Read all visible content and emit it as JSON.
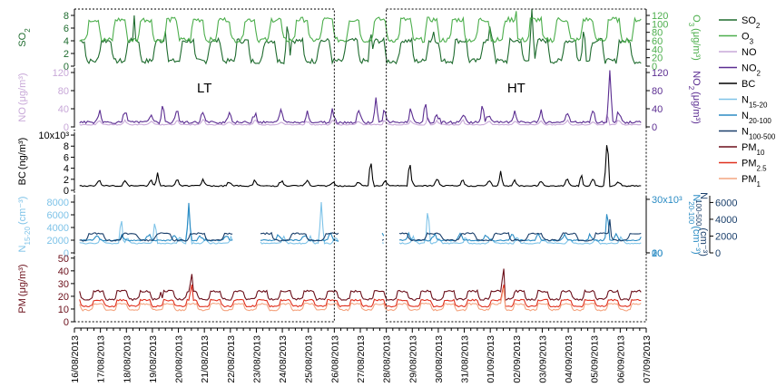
{
  "chart_data": {
    "type": "line",
    "x_labels": [
      "16/08/2013",
      "17/08/2013",
      "18/08/2013",
      "19/08/2013",
      "20/08/2013",
      "21/08/2013",
      "22/08/2013",
      "23/08/2013",
      "24/08/2013",
      "25/08/2013",
      "26/08/2013",
      "27/08/2013",
      "28/08/2013",
      "29/08/2013",
      "30/08/2013",
      "31/08/2013",
      "01/09/2013",
      "02/09/2013",
      "03/09/2013",
      "04/09/2013",
      "05/09/2013",
      "06/09/2013",
      "07/09/2013"
    ],
    "annotations": [
      {
        "text": "LT",
        "x_start": 0,
        "x_end": 10,
        "panel_start": 0,
        "panel_end": 4
      },
      {
        "text": "HT",
        "x_start": 12,
        "x_end": 22,
        "panel_start": 0,
        "panel_end": 4
      }
    ],
    "panels": [
      {
        "id": "so2_o3",
        "left_axis": {
          "label": "SO",
          "label_sub": "2",
          "ticks": [
            "0",
            "2",
            "4",
            "6",
            "8"
          ],
          "ylim": [
            0,
            9
          ],
          "color": "#1e6b2e"
        },
        "right_axis": {
          "label": "O",
          "label_sub": "3",
          "unit": "(μg/m³)",
          "ticks": [
            "0",
            "20",
            "40",
            "60",
            "80",
            "100",
            "120"
          ],
          "ylim": [
            0,
            135
          ],
          "color": "#4cae4c"
        },
        "series": [
          {
            "name": "SO2",
            "color": "#1e6b2e",
            "axis": "left",
            "mode": "wave",
            "base": 2,
            "amp": 2,
            "period": 1.05,
            "phase": 0.1,
            "spikes": [
              [
                2.3,
                8
              ],
              [
                3.5,
                5.5
              ],
              [
                8.2,
                7.5
              ],
              [
                11.4,
                6
              ],
              [
                13.8,
                6.5
              ],
              [
                16.0,
                7.5
              ],
              [
                17.6,
                9
              ],
              [
                19.6,
                6.5
              ]
            ]
          },
          {
            "name": "O3",
            "color": "#4cae4c",
            "axis": "right",
            "mode": "wave",
            "base": 80,
            "amp": 30,
            "period": 1.0,
            "phase": 0.5,
            "spikes": [
              [
                10.8,
                25
              ],
              [
                17.0,
                130
              ],
              [
                19.0,
                125
              ]
            ]
          }
        ]
      },
      {
        "id": "no_no2",
        "left_axis": {
          "label": "NO",
          "label_sub": "",
          "unit": "(μg/m³)",
          "ticks": [
            "0",
            "40",
            "80",
            "120"
          ],
          "ylim": [
            0,
            130
          ],
          "color": "#c8a8d8"
        },
        "right_axis": {
          "label": "NO",
          "label_sub": "2",
          "unit": "(μg/m³)",
          "ticks": [
            "0",
            "40",
            "80",
            "120"
          ],
          "ylim": [
            0,
            130
          ],
          "color": "#5b2d91"
        },
        "series": [
          {
            "name": "NO",
            "color": "#c8a8d8",
            "axis": "left",
            "mode": "spiky",
            "base": 5,
            "amp": 8,
            "period": 1.0,
            "phase": 0.3,
            "spikes": [
              [
                20.5,
                30
              ],
              [
                13.6,
                25
              ]
            ]
          },
          {
            "name": "NO2",
            "color": "#5b2d91",
            "axis": "right",
            "mode": "spiky",
            "base": 10,
            "amp": 22,
            "period": 1.0,
            "phase": 0.3,
            "spikes": [
              [
                3.4,
                55
              ],
              [
                13.5,
                60
              ],
              [
                15.7,
                55
              ],
              [
                20.6,
                125
              ],
              [
                11.6,
                65
              ]
            ]
          }
        ]
      },
      {
        "id": "bc",
        "left_axis": {
          "label": "BC",
          "label_sub": "",
          "unit": "(ng/m³)",
          "ticks": [
            "0",
            "2",
            "4",
            "6",
            "8",
            "10x10³"
          ],
          "ylim": [
            0,
            10.5
          ],
          "color": "#000000"
        },
        "right_axis": null,
        "series": [
          {
            "name": "BC",
            "color": "#000000",
            "axis": "left",
            "mode": "spiky",
            "base": 0.8,
            "amp": 0.9,
            "period": 1.0,
            "phase": 0.3,
            "spikes": [
              [
                20.5,
                9.8
              ],
              [
                11.4,
                5.8
              ],
              [
                12.9,
                5.5
              ],
              [
                3.2,
                3.2
              ],
              [
                16.4,
                3.5
              ],
              [
                19.5,
                3.2
              ]
            ]
          }
        ]
      },
      {
        "id": "particles",
        "left_axis": {
          "label": "N",
          "label_sub": "15-20",
          "unit": "(cm⁻³)",
          "ticks": [
            "0",
            "2000",
            "4000",
            "6000",
            "8000"
          ],
          "ylim": [
            0,
            9000
          ],
          "color": "#7ec3e8"
        },
        "right_axis": {
          "label": "N",
          "label_sub": "20-100",
          "unit": "(cm⁻³)",
          "ticks": [
            "0",
            "10",
            "20",
            "30x10³"
          ],
          "ylim": [
            0,
            32000
          ],
          "color": "#2b8cc4"
        },
        "right_axis2": {
          "label": "N",
          "label_sub": "100-500",
          "unit": "(cm⁻³)",
          "ticks": [
            "0",
            "2000",
            "4000",
            "6000"
          ],
          "ylim": [
            0,
            6800
          ],
          "color": "#1a3f6b"
        },
        "gaps": [
          [
            6.1,
            7.1
          ],
          [
            10.2,
            11.8
          ],
          [
            11.95,
            12.5
          ]
        ],
        "series": [
          {
            "name": "N15-20",
            "color": "#7ec3e8",
            "axis": "left",
            "mode": "spiky",
            "base": 1500,
            "amp": 800,
            "period": 1.0,
            "phase": 0.2,
            "spikes": [
              [
                1.8,
                6000
              ],
              [
                3.1,
                5500
              ],
              [
                4.4,
                7200
              ],
              [
                9.5,
                8000
              ],
              [
                13.6,
                7500
              ]
            ]
          },
          {
            "name": "N20-100",
            "color": "#2b8cc4",
            "axis": "right",
            "mode": "spiky",
            "base": 7000,
            "amp": 3000,
            "period": 1.0,
            "phase": 0.4,
            "spikes": [
              [
                4.4,
                28000
              ],
              [
                20.5,
                26000
              ]
            ]
          },
          {
            "name": "N100-500",
            "color": "#1a3f6b",
            "axis": "right2",
            "mode": "wave",
            "base": 1800,
            "amp": 500,
            "period": 1.3,
            "phase": 0.8,
            "spikes": [
              [
                20.6,
                4000
              ]
            ]
          }
        ]
      },
      {
        "id": "pm",
        "left_axis": {
          "label": "PM",
          "label_sub": "",
          "unit": "(μg/m³)",
          "ticks": [
            "0",
            "10",
            "20",
            "30",
            "40",
            "50"
          ],
          "ylim": [
            0,
            52
          ],
          "color": "#6b0f1a"
        },
        "right_axis": null,
        "series": [
          {
            "name": "PM10",
            "color": "#6b0f1a",
            "axis": "left",
            "mode": "wave",
            "base": 20,
            "amp": 4,
            "period": 0.9,
            "phase": 0.2,
            "spikes": [
              [
                4.5,
                45
              ],
              [
                16.5,
                50
              ],
              [
                3.3,
                28
              ]
            ]
          },
          {
            "name": "PM2.5",
            "color": "#e0301e",
            "axis": "left",
            "mode": "wave",
            "base": 14,
            "amp": 3,
            "period": 0.9,
            "phase": 0.2,
            "spikes": [
              [
                4.5,
                35
              ],
              [
                16.5,
                35
              ]
            ]
          },
          {
            "name": "PM1",
            "color": "#f4a581",
            "axis": "left",
            "mode": "wave",
            "base": 11,
            "amp": 3,
            "period": 0.9,
            "phase": 0.2,
            "spikes": [
              [
                16.5,
                32
              ]
            ]
          }
        ]
      }
    ],
    "legend": [
      {
        "name": "SO",
        "sub": "2",
        "color": "#1e6b2e"
      },
      {
        "name": "O",
        "sub": "3",
        "color": "#4cae4c"
      },
      {
        "name": "NO",
        "sub": "",
        "color": "#c8a8d8"
      },
      {
        "name": "NO",
        "sub": "2",
        "color": "#5b2d91"
      },
      {
        "name": "BC",
        "sub": "",
        "color": "#000000"
      },
      {
        "name": "N",
        "sub": "15-20",
        "color": "#7ec3e8"
      },
      {
        "name": "N",
        "sub": "20-100",
        "color": "#2b8cc4"
      },
      {
        "name": "N",
        "sub": "100-500",
        "color": "#1a3f6b"
      },
      {
        "name": "PM",
        "sub": "10",
        "color": "#6b0f1a"
      },
      {
        "name": "PM",
        "sub": "2.5",
        "color": "#e0301e"
      },
      {
        "name": "PM",
        "sub": "1",
        "color": "#f4a581"
      }
    ]
  }
}
